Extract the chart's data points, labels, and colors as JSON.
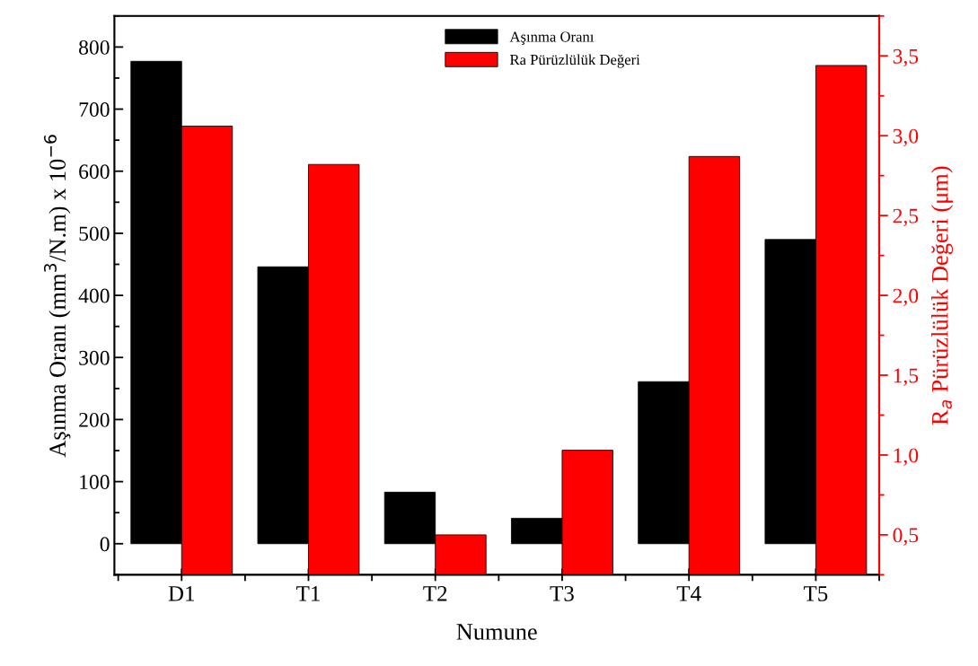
{
  "chart_data": {
    "type": "bar",
    "xlabel": "Numune",
    "ylabel": "Aşınma Oranı (mm$^{3}$/N.m) x 10$^{−6}$",
    "y2label": "R$_{a}$ Pürüzlülük Değeri (μm)",
    "categories": [
      "D1",
      "T1",
      "T2",
      "T3",
      "T4",
      "T5"
    ],
    "series": [
      {
        "name": "Aşınma Oranı",
        "color": "#000000",
        "values": [
          777,
          446,
          83,
          41,
          261,
          490
        ]
      },
      {
        "name": "Ra Pürüzlülük Değeri",
        "color": "#ff0000",
        "axis": "y2",
        "values": [
          3.06,
          2.82,
          0.5,
          1.03,
          2.87,
          3.44
        ]
      }
    ],
    "ylim": [
      -50,
      850
    ],
    "yticks": [
      0,
      100,
      200,
      300,
      400,
      500,
      600,
      700,
      800
    ],
    "y2lim": [
      0.25,
      3.75
    ],
    "y2ticks": [
      {
        "value": 0.5,
        "label": "0,5"
      },
      {
        "value": 1.0,
        "label": "1,0"
      },
      {
        "value": 1.5,
        "label": "1,5"
      },
      {
        "value": 2.0,
        "label": "2,0"
      },
      {
        "value": 2.5,
        "label": "2,5"
      },
      {
        "value": 3.0,
        "label": "3,0"
      },
      {
        "value": 3.5,
        "label": "3,5"
      }
    ],
    "grid": false,
    "legend": "top"
  }
}
